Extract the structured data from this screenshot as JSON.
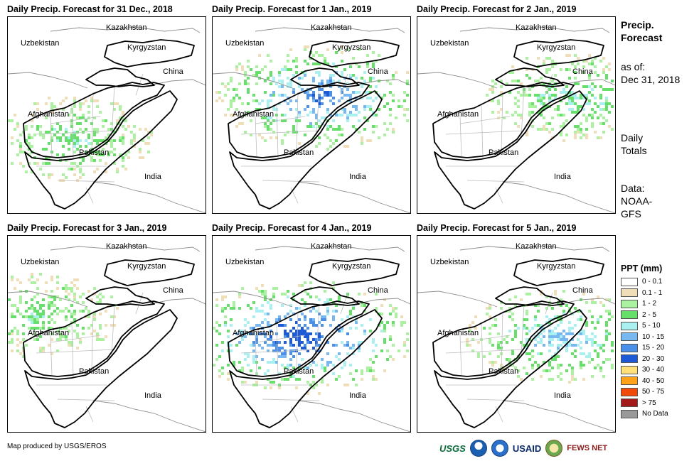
{
  "panels": [
    {
      "title": "Daily Precip. Forecast for 31 Dec., 2018",
      "intensity": 0.35
    },
    {
      "title": "Daily Precip. Forecast for 1 Jan., 2019",
      "intensity": 0.8
    },
    {
      "title": "Daily Precip. Forecast for 2 Jan., 2019",
      "intensity": 0.45
    },
    {
      "title": "Daily Precip. Forecast for 3 Jan., 2019",
      "intensity": 0.3
    },
    {
      "title": "Daily Precip. Forecast for 4 Jan., 2019",
      "intensity": 1.0
    },
    {
      "title": "Daily Precip. Forecast for 5 Jan., 2019",
      "intensity": 0.6
    }
  ],
  "map_labels": {
    "kazakhstan": "Kazakhstan",
    "uzbekistan": "Uzbekistan",
    "kyrgyzstan": "Kyrgyzstan",
    "china": "China",
    "afghanistan": "Afghanistan",
    "pakistan": "Pakistan",
    "india": "India"
  },
  "side": {
    "title_line1": "Precip.",
    "title_line2": "Forecast",
    "asof_line1": "as of:",
    "asof_line2": "Dec 31, 2018",
    "totals_line1": "Daily",
    "totals_line2": "Totals",
    "data_line1": "Data:",
    "data_line2": "NOAA-",
    "data_line3": "GFS"
  },
  "legend": {
    "title": "PPT (mm)",
    "items": [
      {
        "label": "0 - 0.1",
        "color": "#ffffff"
      },
      {
        "label": "0.1 - 1",
        "color": "#f0deb8"
      },
      {
        "label": "1 - 2",
        "color": "#aaf2a0"
      },
      {
        "label": "2 - 5",
        "color": "#66e06a"
      },
      {
        "label": "5 - 10",
        "color": "#aaf0f0"
      },
      {
        "label": "10 - 15",
        "color": "#78b8f0"
      },
      {
        "label": "15 - 20",
        "color": "#4a90e8"
      },
      {
        "label": "20 - 30",
        "color": "#1f5ad6"
      },
      {
        "label": "30 - 40",
        "color": "#ffe07a"
      },
      {
        "label": "40 - 50",
        "color": "#ffa21a"
      },
      {
        "label": "50 - 75",
        "color": "#f24a0a"
      },
      {
        "label": "> 75",
        "color": "#a41a1a"
      },
      {
        "label": "No Data",
        "color": "#999999"
      }
    ]
  },
  "credit": "Map produced by USGS/EROS",
  "logos": {
    "usgs": "USGS",
    "usaid": "USAID",
    "fews": "FEWS NET"
  },
  "logo_icons": [
    "noaa-icon",
    "nws-icon",
    "fews-globe-icon"
  ]
}
